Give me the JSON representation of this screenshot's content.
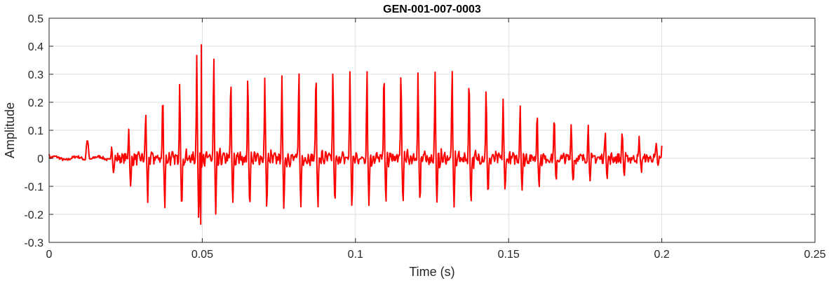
{
  "chart_data": {
    "type": "line",
    "title": "GEN-001-007-0003",
    "xlabel": "Time (s)",
    "ylabel": "Amplitude",
    "xlim": [
      0,
      0.25
    ],
    "ylim": [
      -0.3,
      0.5
    ],
    "xticks": [
      0,
      0.05,
      0.1,
      0.15,
      0.2,
      0.25
    ],
    "xtick_labels": [
      "0",
      "0.05",
      "0.1",
      "0.15",
      "0.2",
      "0.25"
    ],
    "yticks": [
      -0.3,
      -0.2,
      -0.1,
      0,
      0.1,
      0.2,
      0.3,
      0.4,
      0.5
    ],
    "ytick_labels": [
      "-0.3",
      "-0.2",
      "-0.1",
      "0",
      "0.1",
      "0.2",
      "0.3",
      "0.4",
      "0.5"
    ],
    "grid": true,
    "legend": "none",
    "series": [
      {
        "color": "#ff0000",
        "signal": {
          "duration": 0.2,
          "sample_step": 0.0002,
          "pitch_hz": 180,
          "onset": 0.02,
          "peak_time": 0.095,
          "offset": 0.2,
          "start_value": 0.015,
          "end_value": 0.045,
          "max_value": 0.405,
          "max_time": 0.0497,
          "min_value": -0.235,
          "min_time": 0.0495
        },
        "envelope": {
          "time": [
            0,
            0.012,
            0.02,
            0.03,
            0.045,
            0.05,
            0.06,
            0.08,
            0.1,
            0.12,
            0.132,
            0.15,
            0.17,
            0.19,
            0.2
          ],
          "upper": [
            0.015,
            0.065,
            0.05,
            0.14,
            0.3,
            0.405,
            0.27,
            0.3,
            0.31,
            0.305,
            0.31,
            0.2,
            0.13,
            0.09,
            0.045
          ],
          "lower": [
            -0.015,
            -0.02,
            -0.04,
            -0.15,
            -0.2,
            -0.235,
            -0.17,
            -0.18,
            -0.17,
            -0.16,
            -0.18,
            -0.12,
            -0.09,
            -0.06,
            -0.03
          ]
        }
      }
    ]
  }
}
